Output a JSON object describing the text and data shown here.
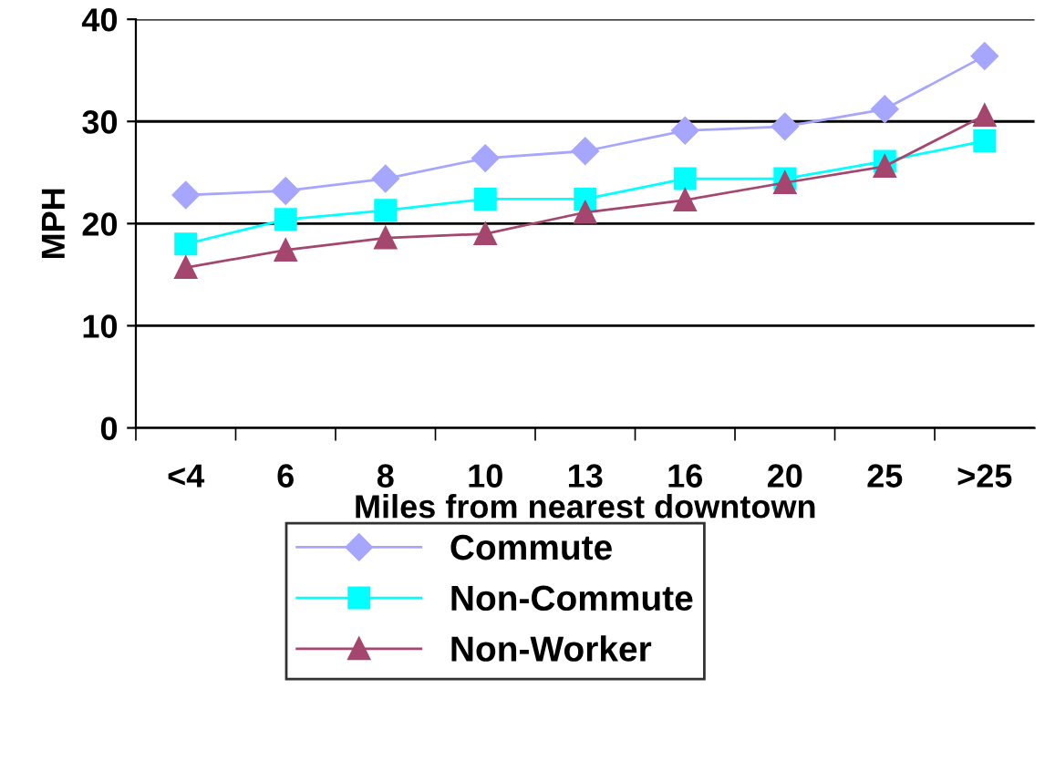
{
  "chart_data": {
    "type": "line",
    "xlabel": "Miles from nearest downtown",
    "ylabel": "MPH",
    "categories": [
      "<4",
      "6",
      "8",
      "10",
      "13",
      "16",
      "20",
      "25",
      ">25"
    ],
    "series": [
      {
        "name": "Commute",
        "color": "#a6a6ff",
        "marker": "diamond",
        "values": [
          22.8,
          23.2,
          24.4,
          26.4,
          27.1,
          29.1,
          29.5,
          31.2,
          36.4
        ]
      },
      {
        "name": "Non-Commute",
        "color": "#00ffff",
        "marker": "square",
        "values": [
          18.0,
          20.4,
          21.3,
          22.4,
          22.4,
          24.4,
          24.4,
          26.1,
          28.1
        ]
      },
      {
        "name": "Non-Worker",
        "color": "#a5466e",
        "marker": "triangle",
        "values": [
          15.7,
          17.4,
          18.6,
          19.0,
          21.1,
          22.3,
          24.0,
          25.6,
          30.6
        ]
      }
    ],
    "ylim": [
      0,
      40
    ],
    "yticks": [
      0,
      10,
      20,
      30,
      40
    ],
    "grid": "y",
    "legend": "bottom",
    "line_style": "solid"
  }
}
